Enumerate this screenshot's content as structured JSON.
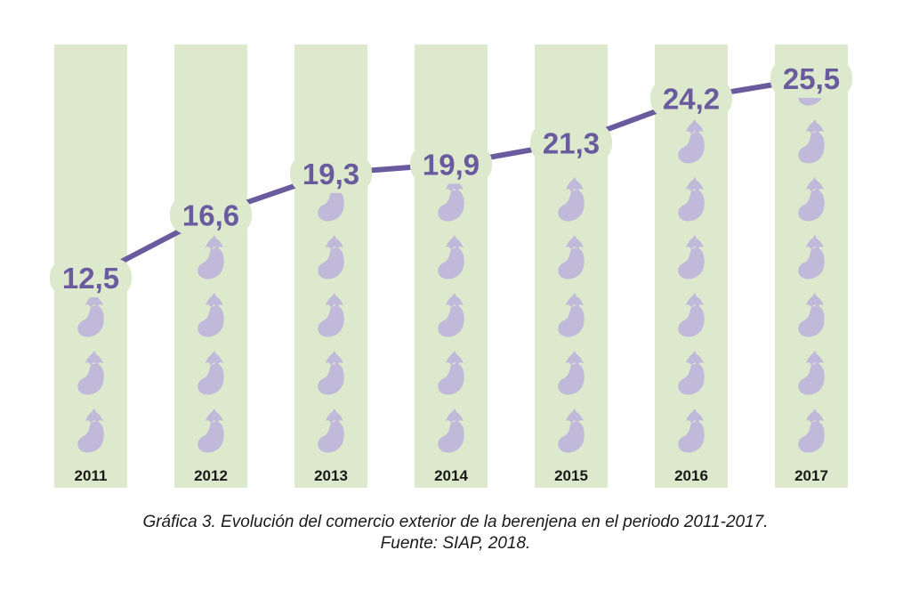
{
  "chart_data": {
    "type": "line",
    "categories": [
      "2011",
      "2012",
      "2013",
      "2014",
      "2015",
      "2016",
      "2017"
    ],
    "values": [
      12.5,
      16.6,
      19.3,
      19.9,
      21.3,
      24.2,
      25.5
    ],
    "value_labels": [
      "12,5",
      "16,6",
      "19,3",
      "19,9",
      "21,3",
      "24,2",
      "25,5"
    ],
    "title": "",
    "xlabel": "",
    "ylabel": "",
    "ylim": [
      12.5,
      25.5
    ],
    "grid": false,
    "legend": "none",
    "pictogram": "eggplant-icon",
    "colors": {
      "line": "#6a5a9e",
      "column": "#dde9cd",
      "icon": "#c1b9d9",
      "year": "#1a1a1a"
    }
  },
  "caption": {
    "line1": "Gráfica 3. Evolución del comercio exterior de la berenjena en el periodo 2011-2017.",
    "line2": "Fuente: SIAP, 2018."
  }
}
